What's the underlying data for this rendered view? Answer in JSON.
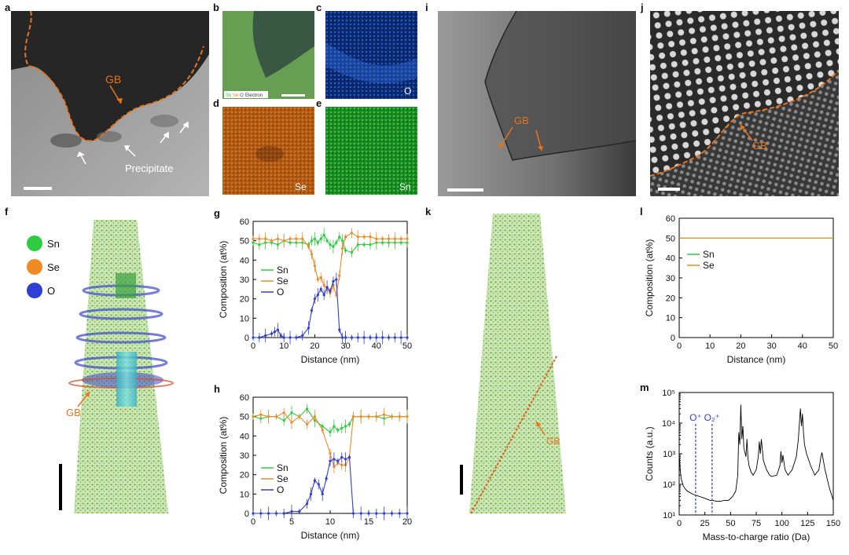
{
  "labels": {
    "a": "a",
    "b": "b",
    "c": "c",
    "d": "d",
    "e": "e",
    "f": "f",
    "g": "g",
    "h": "h",
    "i": "i",
    "j": "j",
    "k": "k",
    "l": "l",
    "m": "m"
  },
  "micro_text": {
    "a_gb": "GB",
    "a_precipitate": "Precipitate",
    "b_legend": [
      "Sn",
      "Se",
      "O",
      "Electron"
    ],
    "c_map": "O",
    "d_map": "Se",
    "e_map": "Sn",
    "f_legend": [
      "Sn",
      "Se",
      "O"
    ],
    "f_gb": "GB",
    "i_gb": "GB",
    "j_gb": "GB",
    "k_gb": "GB"
  },
  "colors": {
    "Sn": "#2ecc40",
    "Se": "#f08a24",
    "O": "#2f3fd6",
    "gb_line": "#e8731a"
  },
  "chart_data": [
    {
      "id": "g",
      "type": "line",
      "xlabel": "Distance (nm)",
      "ylabel": "Composition (at%)",
      "xlim": [
        0,
        50
      ],
      "ylim": [
        0,
        60
      ],
      "xticks": [
        0,
        10,
        20,
        30,
        40,
        50
      ],
      "yticks": [
        0,
        10,
        20,
        30,
        40,
        50,
        60
      ],
      "legend": "left-middle",
      "series": [
        {
          "name": "Sn",
          "color": "#2ecc40",
          "x": [
            0,
            2,
            4,
            6,
            8,
            10,
            12,
            14,
            16,
            18,
            19,
            20,
            21,
            22,
            23,
            24,
            25,
            26,
            27,
            28,
            29,
            30,
            32,
            34,
            36,
            38,
            40,
            42,
            44,
            46,
            48,
            50
          ],
          "y": [
            49,
            48,
            49,
            49,
            48,
            50,
            49,
            49,
            49,
            48,
            50,
            51,
            49,
            51,
            53,
            50,
            48,
            47,
            49,
            52,
            50,
            45,
            44,
            48,
            48,
            48,
            49,
            49,
            49,
            49,
            49,
            49
          ]
        },
        {
          "name": "Se",
          "color": "#f08a24",
          "x": [
            0,
            2,
            4,
            6,
            8,
            10,
            12,
            14,
            16,
            18,
            19,
            20,
            21,
            22,
            23,
            24,
            25,
            26,
            27,
            28,
            29,
            30,
            32,
            34,
            36,
            38,
            40,
            42,
            44,
            46,
            48,
            50
          ],
          "y": [
            51,
            51,
            51,
            50,
            51,
            50,
            51,
            51,
            51,
            47,
            43,
            37,
            30,
            31,
            27,
            25,
            23,
            27,
            22,
            32,
            46,
            52,
            54,
            52,
            52,
            52,
            51,
            51,
            51,
            51,
            51,
            51
          ]
        },
        {
          "name": "O",
          "color": "#2f3fd6",
          "x": [
            0,
            2,
            4,
            6,
            7,
            8,
            9,
            10,
            12,
            14,
            16,
            18,
            19,
            20,
            21,
            22,
            23,
            24,
            25,
            26,
            27,
            28,
            29,
            30,
            32,
            34,
            36,
            38,
            40,
            42,
            44,
            46,
            48,
            50
          ],
          "y": [
            0,
            0,
            1,
            2,
            3,
            4,
            1,
            0,
            0,
            0,
            1,
            5,
            14,
            20,
            22,
            25,
            22,
            26,
            24,
            29,
            30,
            4,
            0,
            0,
            0,
            0,
            0,
            0,
            0,
            0,
            0,
            0,
            0,
            0
          ]
        }
      ]
    },
    {
      "id": "h",
      "type": "line",
      "xlabel": "Distance (nm)",
      "ylabel": "Composition (at%)",
      "xlim": [
        0,
        20
      ],
      "ylim": [
        0,
        60
      ],
      "xticks": [
        0,
        5,
        10,
        15,
        20
      ],
      "yticks": [
        0,
        10,
        20,
        30,
        40,
        50,
        60
      ],
      "legend": "left-lower",
      "series": [
        {
          "name": "Sn",
          "color": "#2ecc40",
          "x": [
            0,
            1,
            2,
            3,
            4,
            5,
            6,
            7,
            8,
            9,
            10,
            10.5,
            11,
            11.5,
            12,
            12.5,
            13,
            14,
            15,
            16,
            17,
            18,
            19,
            20
          ],
          "y": [
            50,
            49,
            50,
            50,
            48,
            52,
            50,
            54,
            48,
            45,
            42,
            45,
            43,
            44,
            45,
            46,
            50,
            50,
            50,
            50,
            49,
            50,
            50,
            50
          ]
        },
        {
          "name": "Se",
          "color": "#f08a24",
          "x": [
            0,
            1,
            2,
            3,
            4,
            5,
            6,
            7,
            8,
            9,
            10,
            10.5,
            11,
            11.5,
            12,
            12.5,
            13,
            14,
            15,
            16,
            17,
            18,
            19,
            20
          ],
          "y": [
            50,
            51,
            50,
            50,
            52,
            47,
            50,
            46,
            50,
            43,
            31,
            24,
            26,
            25,
            25,
            29,
            50,
            50,
            50,
            50,
            51,
            50,
            50,
            50
          ]
        },
        {
          "name": "O",
          "color": "#2f3fd6",
          "x": [
            0,
            1,
            2,
            3,
            4,
            5,
            6,
            7,
            7.5,
            8,
            8.5,
            9,
            9.5,
            10,
            10.5,
            11,
            11.5,
            12,
            12.5,
            13,
            14,
            15,
            16,
            17,
            18,
            19,
            20
          ],
          "y": [
            0,
            0,
            0,
            0,
            0,
            1,
            1,
            5,
            10,
            17,
            15,
            10,
            18,
            27,
            28,
            27,
            29,
            28,
            29,
            0,
            0,
            0,
            0,
            0,
            0,
            0,
            0
          ]
        }
      ]
    },
    {
      "id": "l",
      "type": "line",
      "xlabel": "Distance (nm)",
      "ylabel": "Composition (at%)",
      "xlim": [
        0,
        50
      ],
      "ylim": [
        0,
        60
      ],
      "xticks": [
        0,
        10,
        20,
        30,
        40,
        50
      ],
      "yticks": [
        0,
        10,
        20,
        30,
        40,
        50,
        60
      ],
      "legend": "left-upper",
      "series": [
        {
          "name": "Sn",
          "color": "#2ecc40",
          "x": [
            0,
            10,
            20,
            30,
            40,
            50
          ],
          "y": [
            50,
            50,
            50,
            50,
            50,
            50
          ]
        },
        {
          "name": "Se",
          "color": "#f08a24",
          "x": [
            0,
            10,
            20,
            30,
            40,
            50
          ],
          "y": [
            50,
            50,
            50,
            50,
            50,
            50
          ]
        }
      ]
    },
    {
      "id": "m",
      "type": "line",
      "xlabel": "Mass-to-charge ratio (Da)",
      "ylabel": "Counts (a.u.)",
      "yscale": "log",
      "xlim": [
        0,
        150
      ],
      "ylim": [
        10,
        100000
      ],
      "xticks": [
        0,
        25,
        50,
        75,
        100,
        125,
        150
      ],
      "yticks": [
        10,
        100,
        1000,
        10000,
        100000
      ],
      "ytick_labels": [
        "10¹",
        "10²",
        "10³",
        "10⁴",
        "10⁵"
      ],
      "annotations": [
        {
          "text": "O⁺",
          "x": 16
        },
        {
          "text": "O₂⁺",
          "x": 32
        }
      ],
      "series": [
        {
          "name": "",
          "color": "#000000",
          "x": [
            0,
            1,
            2,
            4,
            6,
            8,
            10,
            12,
            15,
            18,
            20,
            22,
            25,
            28,
            30,
            33,
            36,
            40,
            44,
            48,
            52,
            55,
            57,
            58,
            59,
            60,
            61,
            62,
            63,
            65,
            66,
            67,
            68,
            70,
            72,
            75,
            77,
            78,
            79,
            80,
            82,
            85,
            88,
            90,
            95,
            98,
            99,
            100,
            101,
            103,
            106,
            110,
            114,
            116,
            117,
            118,
            119,
            120,
            121,
            122,
            124,
            128,
            132,
            136,
            138,
            139,
            140,
            142,
            146,
            150
          ],
          "y": [
            1000,
            300,
            150,
            90,
            70,
            60,
            55,
            50,
            45,
            42,
            40,
            38,
            35,
            32,
            30,
            30,
            28,
            28,
            30,
            30,
            40,
            60,
            200,
            5000,
            2000,
            40000,
            3000,
            8000,
            1500,
            800,
            3000,
            700,
            400,
            250,
            200,
            300,
            800,
            2500,
            1000,
            3000,
            600,
            300,
            200,
            180,
            200,
            400,
            1200,
            500,
            900,
            300,
            200,
            300,
            800,
            3000,
            10000,
            30000,
            8000,
            20000,
            5000,
            2000,
            1000,
            400,
            200,
            300,
            800,
            1100,
            700,
            300,
            80,
            30
          ]
        }
      ]
    }
  ]
}
